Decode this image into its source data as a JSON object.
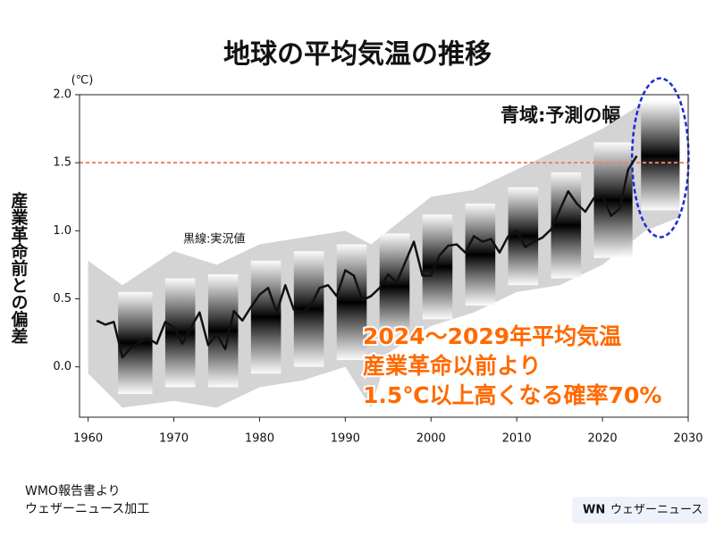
{
  "chart_data": {
    "type": "line",
    "title": "地球の平均気温の推移",
    "unit_label": "(℃)",
    "y_label": "産業革命前との偏差",
    "forecast_label": "青域:予測の幅",
    "observed_label": "黒線:実況値",
    "highlight": [
      "2024〜2029年平均気温",
      "産業革命以前より",
      "1.5℃以上高くなる確率70%"
    ],
    "source": [
      "WMO報告書より",
      "ウェザーニュース加工"
    ],
    "logo": "ウェザーニュース",
    "xlim": [
      1959,
      2030
    ],
    "xticks": [
      1960,
      1970,
      1980,
      1990,
      2000,
      2010,
      2020,
      2030
    ],
    "ylim": [
      -0.37,
      2.0
    ],
    "yticks": [
      {
        "value": 0,
        "label": "0.0"
      },
      0.5,
      {
        "value": 1,
        "label": "1.0"
      },
      1.5,
      {
        "value": 2,
        "label": "2.0"
      }
    ],
    "threshold": 1.5,
    "threshold_color": "#f08060",
    "envelope": {
      "color": "#d4d4d4",
      "x": [
        1960,
        1964,
        1970,
        1975,
        1980,
        1985,
        1990,
        1993,
        1995,
        2000,
        2005,
        2010,
        2015,
        2020,
        2025,
        2029
      ],
      "low": [
        -0.05,
        -0.3,
        -0.25,
        -0.3,
        -0.15,
        -0.1,
        0.0,
        -0.3,
        0.1,
        0.3,
        0.4,
        0.55,
        0.6,
        0.75,
        1.0,
        1.1
      ],
      "high": [
        0.78,
        0.6,
        0.85,
        0.75,
        0.9,
        0.95,
        1.0,
        0.9,
        1.0,
        1.25,
        1.3,
        1.45,
        1.6,
        1.75,
        1.95,
        1.95
      ]
    },
    "hindcasts": {
      "color": "#2e8b3e",
      "start": [
        1963.5,
        1969,
        1974,
        1979,
        1984,
        1989,
        1994,
        1999,
        2004,
        2009,
        2014,
        2019
      ],
      "end": [
        1967.5,
        1972.5,
        1977.5,
        1982.5,
        1987.5,
        1992.5,
        1997.5,
        2002.5,
        2007.5,
        2012.5,
        2017.5,
        2023.5
      ],
      "low": [
        -0.2,
        -0.15,
        -0.15,
        -0.05,
        0.0,
        0.05,
        0.2,
        0.35,
        0.45,
        0.6,
        0.65,
        0.8
      ],
      "high": [
        0.55,
        0.65,
        0.68,
        0.78,
        0.85,
        0.9,
        0.98,
        1.12,
        1.2,
        1.32,
        1.43,
        1.65
      ]
    },
    "forecast": {
      "color": "#1f5fae",
      "start": 2024.5,
      "end": 2029,
      "low": 1.15,
      "high": 1.95
    },
    "x": [
      1961,
      1962,
      1963,
      1964,
      1965,
      1966,
      1967,
      1968,
      1969,
      1970,
      1971,
      1972,
      1973,
      1974,
      1975,
      1976,
      1977,
      1978,
      1979,
      1980,
      1981,
      1982,
      1983,
      1984,
      1985,
      1986,
      1987,
      1988,
      1989,
      1990,
      1991,
      1992,
      1993,
      1994,
      1995,
      1996,
      1997,
      1998,
      1999,
      2000,
      2001,
      2002,
      2003,
      2004,
      2005,
      2006,
      2007,
      2008,
      2009,
      2010,
      2011,
      2012,
      2013,
      2014,
      2015,
      2016,
      2017,
      2018,
      2019,
      2020,
      2021,
      2022,
      2023,
      2024
    ],
    "values": [
      0.34,
      0.31,
      0.33,
      0.07,
      0.14,
      0.18,
      0.21,
      0.17,
      0.33,
      0.29,
      0.17,
      0.29,
      0.4,
      0.16,
      0.24,
      0.13,
      0.41,
      0.34,
      0.44,
      0.53,
      0.58,
      0.4,
      0.6,
      0.42,
      0.4,
      0.45,
      0.58,
      0.6,
      0.52,
      0.71,
      0.67,
      0.49,
      0.52,
      0.58,
      0.68,
      0.62,
      0.77,
      0.92,
      0.67,
      0.67,
      0.82,
      0.89,
      0.9,
      0.84,
      0.96,
      0.92,
      0.94,
      0.84,
      0.96,
      1.0,
      0.88,
      0.92,
      0.95,
      1.01,
      1.15,
      1.29,
      1.2,
      1.14,
      1.24,
      1.26,
      1.11,
      1.16,
      1.45,
      1.55
    ],
    "color": "#111111"
  }
}
